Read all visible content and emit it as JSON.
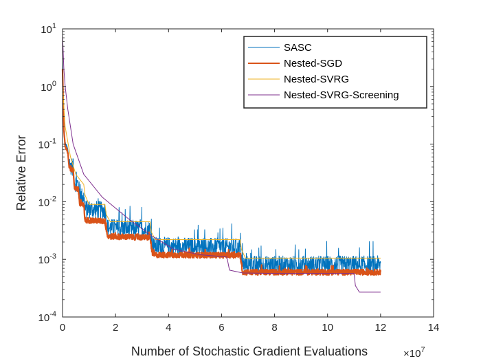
{
  "chart_data": {
    "type": "line",
    "title": "",
    "xlabel": "Number of Stochastic Gradient Evaluations",
    "ylabel": "Relative Error",
    "x_multiplier": "×10",
    "x_multiplier_exp": "7",
    "xscale": "linear",
    "yscale": "log",
    "xlim": [
      0,
      14
    ],
    "ylim": [
      0.0001,
      10
    ],
    "x_ticks": [
      0,
      2,
      4,
      6,
      8,
      10,
      12,
      14
    ],
    "x_tick_labels": [
      "0",
      "2",
      "4",
      "6",
      "8",
      "10",
      "12",
      "14"
    ],
    "y_ticks": [
      0.0001,
      0.001,
      0.01,
      0.1,
      1,
      10
    ],
    "y_tick_labels": [
      {
        "base": "10",
        "exp": "-4"
      },
      {
        "base": "10",
        "exp": "-3"
      },
      {
        "base": "10",
        "exp": "-2"
      },
      {
        "base": "10",
        "exp": "-1"
      },
      {
        "base": "10",
        "exp": "0"
      },
      {
        "base": "10",
        "exp": "1"
      }
    ],
    "legend_position": "top-right",
    "series": [
      {
        "name": "SASC",
        "color": "#0072BD",
        "noise": 0.16,
        "x": [
          0,
          0.05,
          0.1,
          0.2,
          0.25,
          0.4,
          0.45,
          0.6,
          0.65,
          0.8,
          0.85,
          1.6,
          1.7,
          3.3,
          3.4,
          6.7,
          6.8,
          12.0
        ],
        "y": [
          3.0,
          0.25,
          0.1,
          0.08,
          0.045,
          0.04,
          0.022,
          0.02,
          0.0125,
          0.012,
          0.0075,
          0.007,
          0.0035,
          0.0033,
          0.0017,
          0.0016,
          0.0008,
          0.0008
        ]
      },
      {
        "name": "Nested-SGD",
        "color": "#D95319",
        "noise": 0.05,
        "x": [
          0,
          0.05,
          0.1,
          0.2,
          0.25,
          0.4,
          0.45,
          0.6,
          0.65,
          0.8,
          0.85,
          1.6,
          1.7,
          3.3,
          3.4,
          6.7,
          6.8,
          12.0
        ],
        "y": [
          2.0,
          0.18,
          0.09,
          0.07,
          0.04,
          0.035,
          0.018,
          0.016,
          0.009,
          0.0085,
          0.0048,
          0.0046,
          0.0025,
          0.0024,
          0.0012,
          0.00118,
          0.0006,
          0.0006
        ]
      },
      {
        "name": "Nested-SVRG",
        "color": "#EDB120",
        "noise": 0,
        "x": [
          0,
          0.1,
          0.3,
          0.5,
          0.8,
          0.85,
          1.0,
          1.6,
          1.65,
          1.8,
          3.3,
          3.35,
          3.5,
          6.7,
          6.75,
          6.9,
          12.0
        ],
        "y": [
          1.0,
          0.2,
          0.06,
          0.03,
          0.02,
          0.013,
          0.009,
          0.009,
          0.006,
          0.0045,
          0.0045,
          0.003,
          0.0022,
          0.0022,
          0.0015,
          0.00105,
          0.00105
        ]
      },
      {
        "name": "Nested-SVRG-Screening",
        "color": "#7E2F8E",
        "noise": 0,
        "x": [
          0,
          0.05,
          0.1,
          0.2,
          0.4,
          0.8,
          1.5,
          2.5,
          3.4,
          4.2,
          5.2,
          6.2,
          6.3,
          6.8,
          8.0,
          11.0,
          11.05,
          11.2,
          12.0
        ],
        "y": [
          8.0,
          2.0,
          1.0,
          0.4,
          0.1,
          0.03,
          0.012,
          0.005,
          0.0025,
          0.0015,
          0.0012,
          0.0011,
          0.00065,
          0.00058,
          0.00057,
          0.00057,
          0.00035,
          0.00027,
          0.00027
        ]
      }
    ]
  }
}
